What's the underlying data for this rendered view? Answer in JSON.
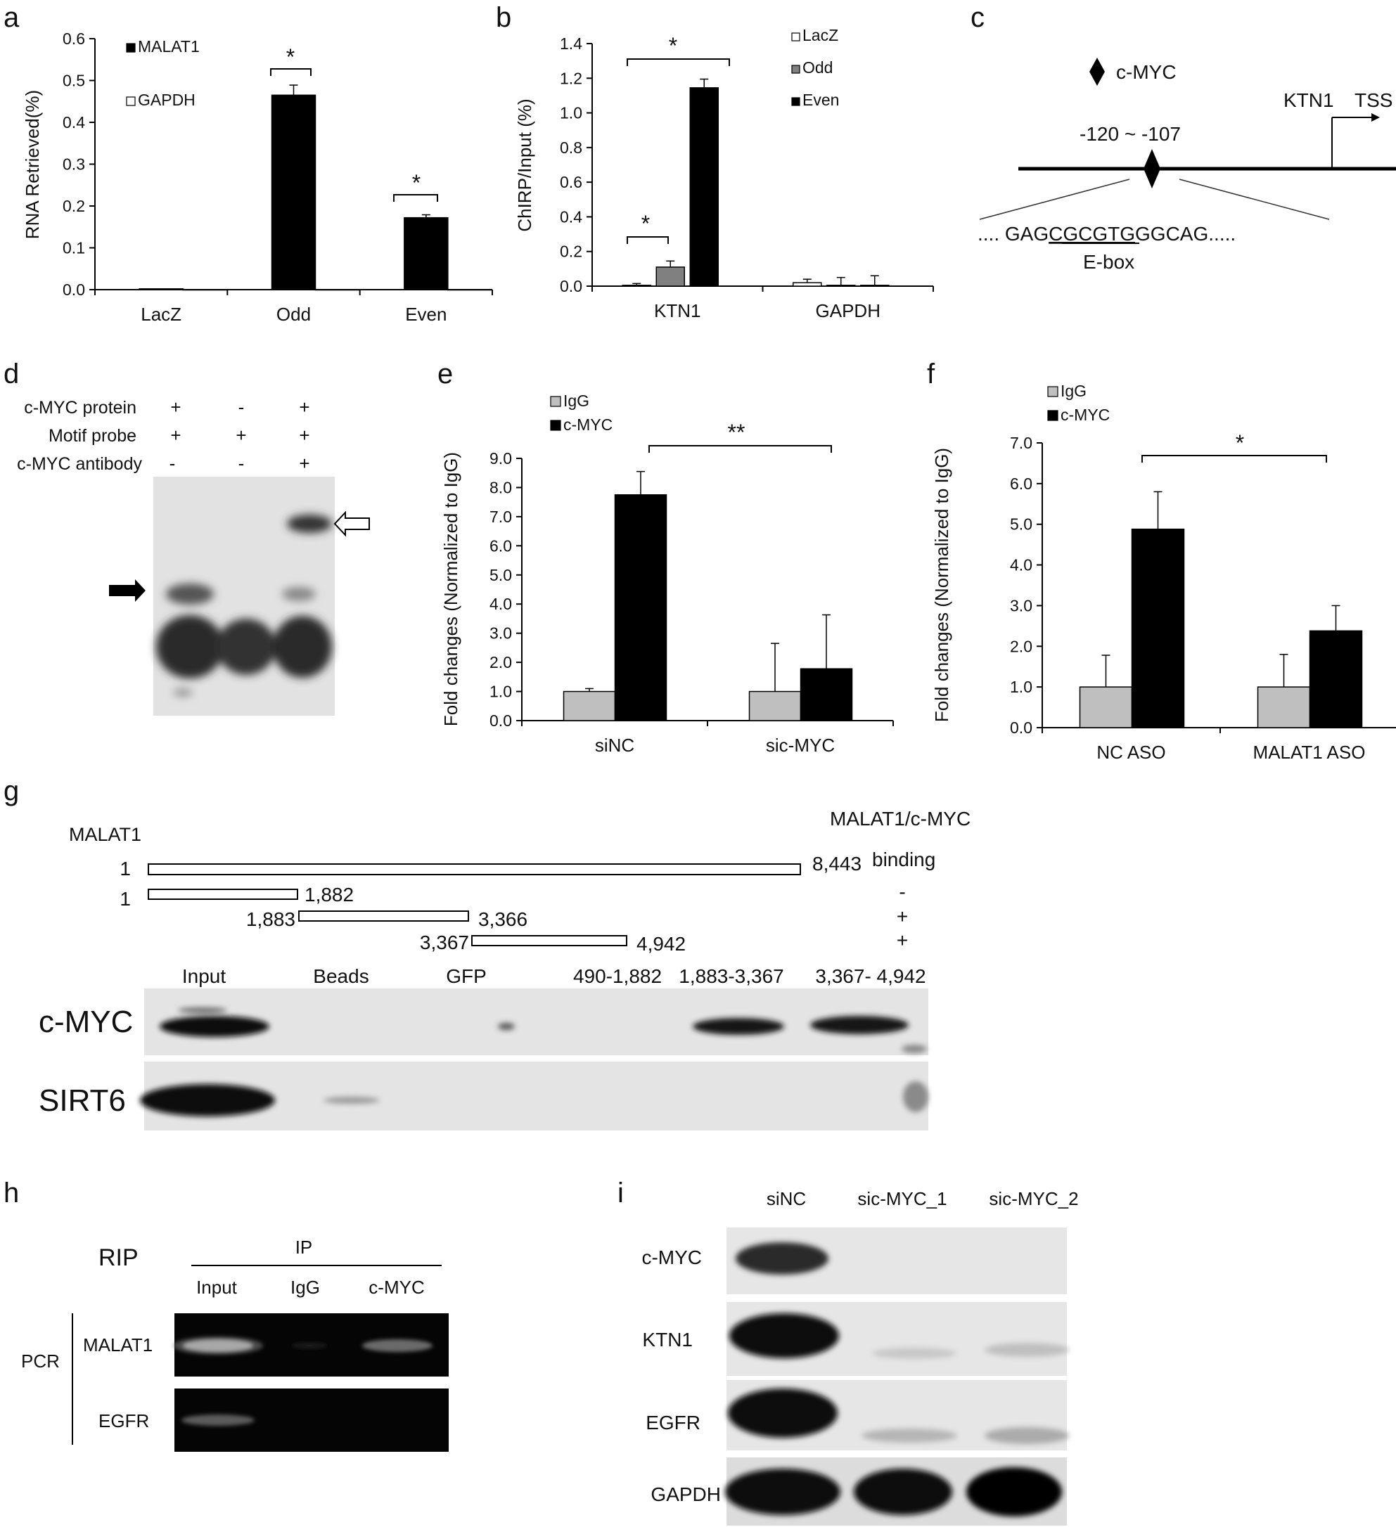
{
  "panels": {
    "a": "a",
    "b": "b",
    "c": "c",
    "d": "d",
    "e": "e",
    "f": "f",
    "g": "g",
    "h": "h",
    "i": "i"
  },
  "chart_data": [
    {
      "id": "a",
      "type": "bar",
      "ylabel": "RNA Retrieved(%)",
      "categories": [
        "LacZ",
        "Odd",
        "Even"
      ],
      "ylim": [
        0,
        0.6
      ],
      "yticks": [
        "0.0",
        "0.1",
        "0.2",
        "0.3",
        "0.4",
        "0.5",
        "0.6"
      ],
      "series": [
        {
          "name": "MALAT1",
          "values": [
            0.002,
            0.465,
            0.172
          ],
          "errors": [
            0.0,
            0.024,
            0.007
          ],
          "color": "#000000"
        },
        {
          "name": "GAPDH",
          "values": [
            0.0,
            0.0,
            0.0
          ],
          "errors": [
            0.0,
            0.0,
            0.0
          ],
          "color": "#ffffff"
        }
      ],
      "significance": [
        {
          "category": "Odd",
          "label": "*"
        },
        {
          "category": "Even",
          "label": "*"
        }
      ]
    },
    {
      "id": "b",
      "type": "bar",
      "ylabel": "ChIRP/Input (%)",
      "categories": [
        "KTN1",
        "GAPDH"
      ],
      "ylim": [
        0,
        1.4
      ],
      "yticks": [
        "0.0",
        "0.2",
        "0.4",
        "0.6",
        "0.8",
        "1.0",
        "1.2",
        "1.4"
      ],
      "series": [
        {
          "name": "LacZ",
          "values": [
            0.005,
            0.02
          ],
          "errors": [
            0.01,
            0.02
          ],
          "color": "#ffffff"
        },
        {
          "name": "Odd",
          "values": [
            0.11,
            0.005
          ],
          "errors": [
            0.035,
            0.045
          ],
          "color": "#808080"
        },
        {
          "name": "Even",
          "values": [
            1.145,
            0.005
          ],
          "errors": [
            0.05,
            0.055
          ],
          "color": "#000000"
        }
      ],
      "significance": [
        {
          "label": "*",
          "between": [
            "LacZ",
            "Odd"
          ]
        },
        {
          "label": "*",
          "between": [
            "LacZ",
            "Even"
          ]
        }
      ]
    },
    {
      "id": "e",
      "type": "bar",
      "ylabel": "Fold changes (Normalized to IgG)",
      "categories": [
        "siNC",
        "sic-MYC"
      ],
      "ylim": [
        0,
        9
      ],
      "yticks": [
        "0.0",
        "1.0",
        "2.0",
        "3.0",
        "4.0",
        "5.0",
        "6.0",
        "7.0",
        "8.0",
        "9.0"
      ],
      "series": [
        {
          "name": "IgG",
          "values": [
            1.0,
            1.0
          ],
          "errors": [
            0.1,
            1.65
          ],
          "color": "#bfbfbf"
        },
        {
          "name": "c-MYC",
          "values": [
            7.75,
            1.78
          ],
          "errors": [
            0.8,
            1.85
          ],
          "color": "#000000"
        }
      ],
      "significance": [
        {
          "label": "**"
        }
      ]
    },
    {
      "id": "f",
      "type": "bar",
      "ylabel": "Fold changes (Normalized to IgG)",
      "categories": [
        "NC ASO",
        "MALAT1 ASO"
      ],
      "ylim": [
        0,
        7
      ],
      "yticks": [
        "0.0",
        "1.0",
        "2.0",
        "3.0",
        "4.0",
        "5.0",
        "6.0",
        "7.0"
      ],
      "series": [
        {
          "name": "IgG",
          "values": [
            1.0,
            1.0
          ],
          "errors": [
            0.78,
            0.8
          ],
          "color": "#bfbfbf"
        },
        {
          "name": "c-MYC",
          "values": [
            4.88,
            2.38
          ],
          "errors": [
            0.92,
            0.62
          ],
          "color": "#000000"
        }
      ],
      "significance": [
        {
          "label": "*"
        }
      ]
    }
  ],
  "panel_c": {
    "factor": "c-MYC",
    "gene": "KTN1",
    "tss": "TSS",
    "position": "-120 ~ -107",
    "seq_prefix": ".... GAG",
    "seq_ebox": "CGCGTG",
    "seq_suffix": "GGCAG.....",
    "ebox_label": "E-box"
  },
  "panel_d": {
    "rows": [
      {
        "label": "c-MYC protein",
        "marks": [
          "+",
          "-",
          "+"
        ]
      },
      {
        "label": "Motif probe",
        "marks": [
          "+",
          "+",
          "+"
        ]
      },
      {
        "label": "c-MYC antibody",
        "marks": [
          "-",
          "-",
          "+"
        ]
      }
    ]
  },
  "panel_g": {
    "title": "MALAT1",
    "binding_header_line1": "MALAT1/c-MYC",
    "binding_header_line2": "binding",
    "constructs": [
      {
        "start": "1",
        "end": "8,443",
        "binding": ""
      },
      {
        "start": "1",
        "end": "1,882",
        "binding": "-"
      },
      {
        "start": "1,883",
        "end": "3,366",
        "binding": "+"
      },
      {
        "start": "3,367",
        "end": "4,942",
        "binding": "+"
      }
    ],
    "lanes": [
      "Input",
      "Beads",
      "GFP",
      "490-1,882",
      "1,883-3,367",
      "3,367- 4,942"
    ],
    "blots": [
      "c-MYC",
      "SIRT6"
    ]
  },
  "panel_h": {
    "rip": "RIP",
    "ip": "IP",
    "lanes": [
      "Input",
      "IgG",
      "c-MYC"
    ],
    "pcr": "PCR",
    "rows": [
      "MALAT1",
      "EGFR"
    ]
  },
  "panel_i": {
    "lanes": [
      "siNC",
      "sic-MYC_1",
      "sic-MYC_2"
    ],
    "rows": [
      "c-MYC",
      "KTN1",
      "EGFR",
      "GAPDH"
    ]
  }
}
